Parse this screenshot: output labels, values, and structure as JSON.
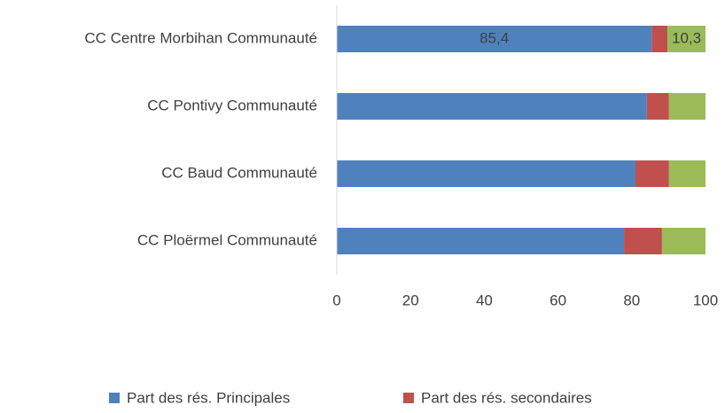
{
  "chart_data": {
    "type": "bar",
    "orientation": "horizontal",
    "stacked": true,
    "categories": [
      "CC Centre Morbihan Communauté",
      "CC Pontivy Communauté",
      "CC Baud Communauté",
      "CC Ploërmel Communauté"
    ],
    "series": [
      {
        "name": "Part des rés. Principales",
        "color": "#4f81bd",
        "values": [
          85.4,
          84.1,
          81.0,
          77.9
        ],
        "value_labels": [
          "85,4",
          null,
          null,
          null
        ]
      },
      {
        "name": "Part des rés. secondaires",
        "color": "#c0504d",
        "values": [
          4.3,
          6.0,
          9.1,
          10.3
        ]
      },
      {
        "color": "#9bbb59",
        "values": [
          10.3,
          9.9,
          9.9,
          11.8
        ],
        "value_labels": [
          "10,3",
          null,
          null,
          null
        ]
      }
    ],
    "xlim": [
      0,
      100
    ],
    "xticks": [
      0,
      20,
      40,
      60,
      80,
      100
    ],
    "grid": false,
    "legend": "bottom"
  }
}
